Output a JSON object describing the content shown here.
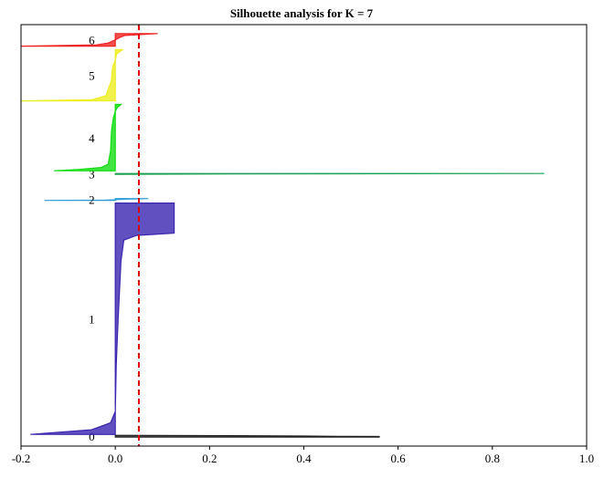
{
  "chart_data": {
    "type": "area",
    "title": "Silhouette analysis for K = 7",
    "xlabel": "",
    "ylabel": "",
    "xlim": [
      -0.2,
      1.0
    ],
    "x_ticks": [
      "-0.2",
      "0.0",
      "0.2",
      "0.4",
      "0.6",
      "0.8",
      "1.0"
    ],
    "x_tick_values": [
      -0.2,
      0.0,
      0.2,
      0.4,
      0.6,
      0.8,
      1.0
    ],
    "y_ticks_visible": false,
    "grid": false,
    "average_silhouette": 0.05,
    "average_line_color": "#dd0000",
    "clusters": [
      {
        "label": "0",
        "color": "#222222",
        "ymin": 0,
        "ymax": 2,
        "profile": [
          [
            0.0,
            0.56
          ],
          [
            0.35,
            0.56
          ],
          [
            0.45,
            0.47
          ],
          [
            0.6,
            0.4
          ],
          [
            0.8,
            0.25
          ],
          [
            1.0,
            0.0
          ]
        ]
      },
      {
        "label": "1",
        "color": "#3a26b0",
        "ymin": 3,
        "ymax": 261,
        "profile": [
          [
            0.0,
            -0.18
          ],
          [
            0.02,
            -0.05
          ],
          [
            0.05,
            -0.01
          ],
          [
            0.1,
            0.0
          ],
          [
            0.3,
            0.002
          ],
          [
            0.5,
            0.006
          ],
          [
            0.75,
            0.012
          ],
          [
            0.84,
            0.018
          ],
          [
            0.86,
            0.045
          ],
          [
            0.87,
            0.125
          ],
          [
            1.0,
            0.125
          ]
        ]
      },
      {
        "label": "2",
        "color": "#2a9ad8",
        "ymin": 264,
        "ymax": 266,
        "profile": [
          [
            0.0,
            -0.15
          ],
          [
            0.2,
            -0.02
          ],
          [
            0.35,
            0.0
          ],
          [
            0.5,
            0.005
          ],
          [
            0.75,
            0.035
          ],
          [
            1.0,
            0.07
          ]
        ]
      },
      {
        "label": "3",
        "color": "#1aa050",
        "ymin": 293,
        "ymax": 294,
        "profile": [
          [
            0.0,
            0.0
          ],
          [
            0.5,
            0.25
          ],
          [
            1.0,
            0.91
          ]
        ]
      },
      {
        "label": "4",
        "color": "#11dd11",
        "ymin": 297,
        "ymax": 371,
        "profile": [
          [
            0.0,
            -0.13
          ],
          [
            0.02,
            -0.08
          ],
          [
            0.05,
            -0.03
          ],
          [
            0.1,
            -0.015
          ],
          [
            0.3,
            -0.01
          ],
          [
            0.6,
            -0.008
          ],
          [
            0.8,
            -0.004
          ],
          [
            0.9,
            0.0
          ],
          [
            0.96,
            0.005
          ],
          [
            1.0,
            0.012
          ]
        ]
      },
      {
        "label": "5",
        "color": "#eeee22",
        "ymin": 375,
        "ymax": 432,
        "profile": [
          [
            0.0,
            -0.2
          ],
          [
            0.02,
            -0.05
          ],
          [
            0.1,
            -0.02
          ],
          [
            0.4,
            -0.008
          ],
          [
            0.65,
            -0.006
          ],
          [
            0.8,
            0.0
          ],
          [
            0.92,
            0.003
          ],
          [
            1.0,
            0.015
          ]
        ]
      },
      {
        "label": "6",
        "color": "#ee2222",
        "ymin": 436,
        "ymax": 450,
        "profile": [
          [
            0.0,
            -0.2
          ],
          [
            0.1,
            -0.04
          ],
          [
            0.25,
            -0.015
          ],
          [
            0.5,
            0.0
          ],
          [
            0.7,
            0.01
          ],
          [
            0.85,
            0.02
          ],
          [
            1.0,
            0.09
          ]
        ]
      }
    ]
  }
}
